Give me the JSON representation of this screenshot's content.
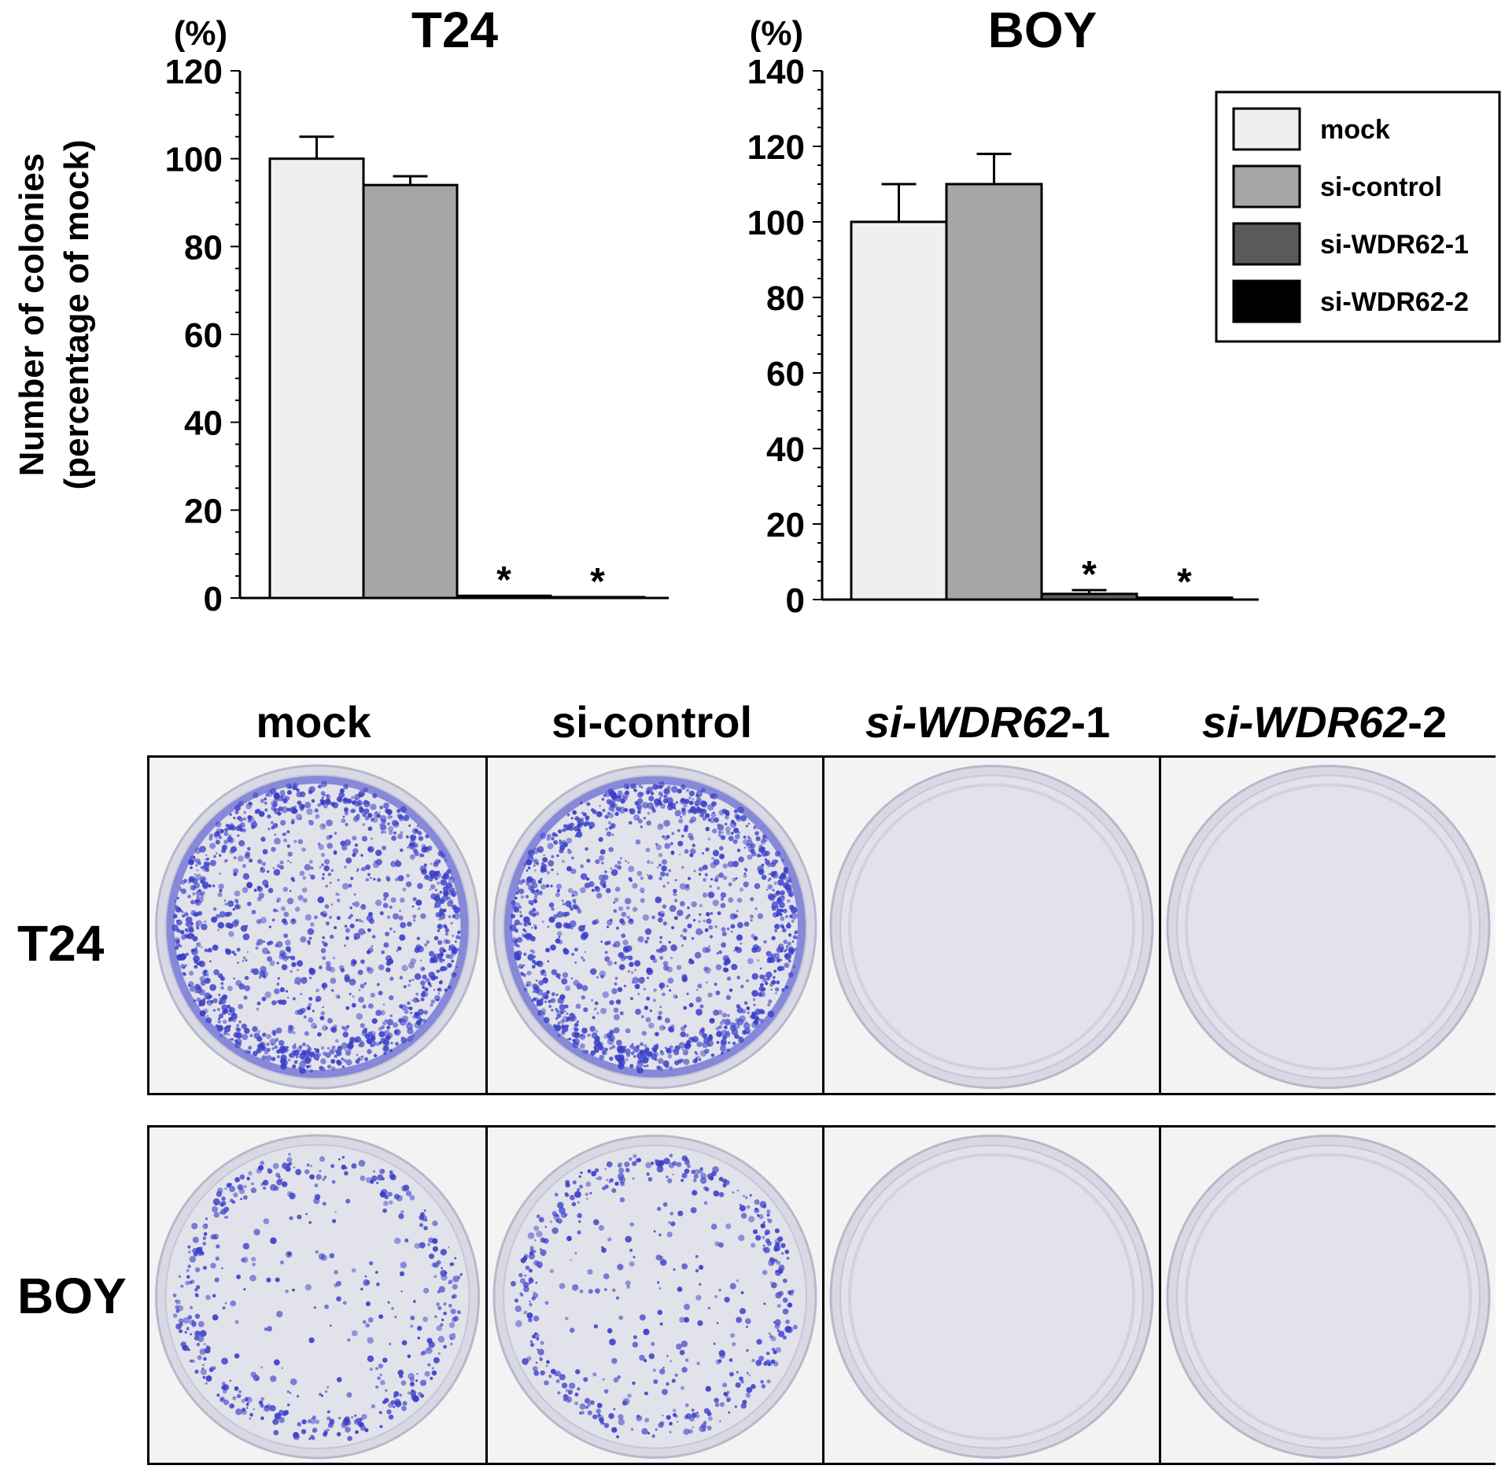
{
  "chart_data": [
    {
      "type": "bar",
      "title": "T24",
      "unit_label": "(%)",
      "ylabel_line1": "Number of colonies",
      "ylabel_line2": "(percentage of mock)",
      "categories": [
        "mock",
        "si-control",
        "si-WDR62-1",
        "si-WDR62-2"
      ],
      "values": [
        100,
        94,
        0.5,
        0.2
      ],
      "errors": [
        5,
        2,
        0,
        0
      ],
      "significance": [
        "",
        "",
        "*",
        "*"
      ],
      "ylim": [
        0,
        120
      ],
      "yticks": [
        0,
        20,
        40,
        60,
        80,
        100,
        120
      ]
    },
    {
      "type": "bar",
      "title": "BOY",
      "unit_label": "(%)",
      "categories": [
        "mock",
        "si-control",
        "si-WDR62-1",
        "si-WDR62-2"
      ],
      "values": [
        100,
        110,
        1.5,
        0.5
      ],
      "errors": [
        10,
        8,
        1,
        0
      ],
      "significance": [
        "",
        "",
        "*",
        "*"
      ],
      "ylim": [
        0,
        140
      ],
      "yticks": [
        0,
        20,
        40,
        60,
        80,
        100,
        120,
        140
      ]
    }
  ],
  "legend": {
    "position": "top-right",
    "items": [
      {
        "label": "mock",
        "color": "#efefef"
      },
      {
        "label": "si-control",
        "color": "#a6a6a6"
      },
      {
        "label": "si-WDR62-1",
        "color": "#5a5a5a"
      },
      {
        "label": "si-WDR62-2",
        "color": "#000000"
      }
    ]
  },
  "photo_panel": {
    "columns": [
      {
        "prefix": "",
        "gene": "",
        "suffix": "mock"
      },
      {
        "prefix": "",
        "gene": "",
        "suffix": "si-control"
      },
      {
        "prefix": "si-",
        "gene": "WDR62",
        "suffix": "-1"
      },
      {
        "prefix": "si-",
        "gene": "WDR62",
        "suffix": "-2"
      }
    ],
    "rows": [
      "T24",
      "BOY"
    ],
    "stain_color": "#3a3fc8"
  }
}
